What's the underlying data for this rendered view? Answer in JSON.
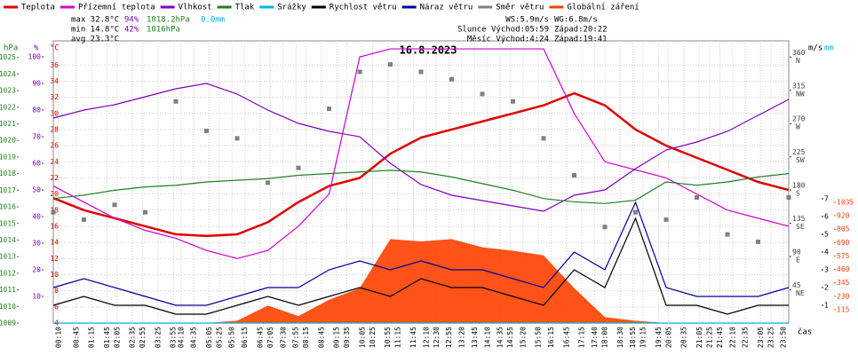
{
  "chart_data": {
    "type": "line",
    "title": "16.8.2023",
    "x_label": "čas",
    "stats": [
      "max 32.8°C",
      "94%",
      "1018.2hPa",
      "0.0mm",
      "min 14.8°C",
      "42%",
      "1016hPa",
      "avg 23.3°C"
    ],
    "wind_stats": [
      "WS:5.9m/s",
      "WG:6.8m/s"
    ],
    "sun": [
      "Slunce Východ:05:59",
      "Západ:20:22"
    ],
    "moon": [
      "Měsíc Východ:4:24",
      "Západ:19:41"
    ],
    "axis_units": {
      "hpa": "hPa",
      "pct": "%",
      "temp": "°C",
      "ms": "m/s",
      "mm": "mm"
    },
    "x": [
      0,
      1,
      2,
      3,
      4,
      5,
      6,
      7,
      8,
      9,
      10,
      11,
      12,
      13,
      14,
      15,
      16,
      17,
      18,
      19,
      20,
      21,
      22,
      23,
      24
    ],
    "xlim": [
      0,
      24
    ],
    "xticks": [
      {
        "value": 0.17,
        "label": "00:10"
      },
      {
        "value": 0.75,
        "label": "00:45"
      },
      {
        "value": 1.25,
        "label": "01:15"
      },
      {
        "value": 1.75,
        "label": "01:45"
      },
      {
        "value": 2.08,
        "label": "02:05"
      },
      {
        "value": 2.58,
        "label": "02:35"
      },
      {
        "value": 2.92,
        "label": "02:55"
      },
      {
        "value": 3.42,
        "label": "03:25"
      },
      {
        "value": 3.92,
        "label": "03:55"
      },
      {
        "value": 4.17,
        "label": "04:10"
      },
      {
        "value": 4.58,
        "label": "04:35"
      },
      {
        "value": 5.08,
        "label": "05:05"
      },
      {
        "value": 5.42,
        "label": "05:25"
      },
      {
        "value": 5.83,
        "label": "05:50"
      },
      {
        "value": 6.25,
        "label": "06:15"
      },
      {
        "value": 6.75,
        "label": "06:45"
      },
      {
        "value": 7.08,
        "label": "07:05"
      },
      {
        "value": 7.5,
        "label": "07:30"
      },
      {
        "value": 7.92,
        "label": "07:55"
      },
      {
        "value": 8.25,
        "label": "08:15"
      },
      {
        "value": 8.75,
        "label": "08:45"
      },
      {
        "value": 9.25,
        "label": "09:15"
      },
      {
        "value": 9.58,
        "label": "09:35"
      },
      {
        "value": 10.08,
        "label": "10:05"
      },
      {
        "value": 10.42,
        "label": "10:25"
      },
      {
        "value": 10.92,
        "label": "10:55"
      },
      {
        "value": 11.25,
        "label": "11:15"
      },
      {
        "value": 11.75,
        "label": "11:45"
      },
      {
        "value": 12.17,
        "label": "12:10"
      },
      {
        "value": 12.5,
        "label": "12:30"
      },
      {
        "value": 12.92,
        "label": "12:55"
      },
      {
        "value": 13.33,
        "label": "13:20"
      },
      {
        "value": 13.75,
        "label": "13:45"
      },
      {
        "value": 14.17,
        "label": "14:10"
      },
      {
        "value": 14.58,
        "label": "14:35"
      },
      {
        "value": 14.92,
        "label": "14:55"
      },
      {
        "value": 15.33,
        "label": "15:20"
      },
      {
        "value": 15.83,
        "label": "15:50"
      },
      {
        "value": 16.25,
        "label": "16:15"
      },
      {
        "value": 16.75,
        "label": "16:45"
      },
      {
        "value": 17.25,
        "label": "17:15"
      },
      {
        "value": 17.67,
        "label": "17:40"
      },
      {
        "value": 18,
        "label": "18:00"
      },
      {
        "value": 18.5,
        "label": "18:30"
      },
      {
        "value": 18.92,
        "label": "18:55"
      },
      {
        "value": 19.25,
        "label": "19:15"
      },
      {
        "value": 19.75,
        "label": "19:45"
      },
      {
        "value": 20.08,
        "label": "20:05"
      },
      {
        "value": 20.58,
        "label": "20:35"
      },
      {
        "value": 21.08,
        "label": "21:05"
      },
      {
        "value": 21.42,
        "label": "21:25"
      },
      {
        "value": 21.75,
        "label": "21:45"
      },
      {
        "value": 22.17,
        "label": "22:10"
      },
      {
        "value": 22.58,
        "label": "22:35"
      },
      {
        "value": 23.08,
        "label": "23:05"
      },
      {
        "value": 23.42,
        "label": "23:25"
      },
      {
        "value": 23.83,
        "label": "23:50"
      }
    ],
    "axes": {
      "temp": {
        "ylim": [
          4,
          39
        ],
        "yticks": [
          4,
          6,
          8,
          10,
          12,
          14,
          16,
          18,
          20,
          22,
          24,
          26,
          28,
          30,
          32,
          34,
          36
        ],
        "color": "#e00000"
      },
      "pct": {
        "ylim": [
          0,
          106
        ],
        "yticks": [
          10,
          20,
          30,
          40,
          50,
          60,
          70,
          80,
          90,
          100
        ],
        "color": "#8000c0"
      },
      "hpa": {
        "ylim": [
          1009,
          1026
        ],
        "yticks": [
          1009,
          1010,
          1011,
          1012,
          1013,
          1014,
          1015,
          1016,
          1017,
          1018,
          1019,
          1020,
          1021,
          1022,
          1023,
          1024,
          1025
        ],
        "color": "#208020"
      },
      "dir": {
        "ylim": [
          0,
          382
        ],
        "yticks": [
          45,
          90,
          135,
          180,
          225,
          270,
          315,
          360
        ],
        "dir_labels": [
          "NE",
          "E",
          "SE",
          "S",
          "SW",
          "W",
          "NW",
          "N"
        ],
        "color": "#404040"
      },
      "ms": {
        "ylim": [
          0,
          15.9
        ],
        "yticks": [
          1,
          2,
          3,
          4,
          5,
          6,
          7
        ],
        "color": "#000000"
      },
      "rad": {
        "ylim": [
          0,
          2420
        ],
        "yticks": [
          115,
          230,
          345,
          460,
          575,
          690,
          805,
          920,
          1035
        ],
        "color": "#ff4000"
      }
    },
    "series": [
      {
        "name": "Teplota",
        "color": "#e00000",
        "axis": "temp",
        "values": [
          19.5,
          18,
          17,
          16,
          15,
          14.8,
          15,
          16.5,
          19,
          21,
          22,
          25,
          27,
          28,
          29,
          30,
          31,
          32.5,
          31,
          28,
          26,
          24.5,
          23,
          21.5,
          20.5
        ]
      },
      {
        "name": "Přízemní teplota",
        "color": "#d000d0",
        "axis": "temp",
        "values": [
          21,
          19,
          17,
          15.5,
          14.5,
          13,
          12,
          13,
          16,
          20,
          37,
          38,
          38,
          38,
          38,
          38,
          38,
          30,
          24,
          23,
          22,
          20,
          18,
          17,
          16
        ]
      },
      {
        "name": "Vlhkost",
        "color": "#8000c0",
        "axis": "pct",
        "values": [
          77,
          80,
          82,
          85,
          88,
          90,
          86,
          80,
          75,
          72,
          70,
          60,
          52,
          48,
          46,
          44,
          42,
          48,
          50,
          58,
          65,
          68,
          72,
          78,
          84
        ]
      },
      {
        "name": "Tlak",
        "color": "#208020",
        "axis": "hpa",
        "values": [
          1016.5,
          1016.7,
          1017,
          1017.2,
          1017.3,
          1017.5,
          1017.6,
          1017.7,
          1017.9,
          1018,
          1018.1,
          1018.2,
          1018.1,
          1017.8,
          1017.4,
          1017,
          1016.5,
          1016.3,
          1016.2,
          1016.4,
          1017.5,
          1017.3,
          1017.5,
          1017.8,
          1018
        ]
      },
      {
        "name": "Srážky",
        "color": "#00b0e0",
        "axis": "ms",
        "values": [
          0,
          0,
          0,
          0,
          0,
          0,
          0,
          0,
          0,
          0,
          0,
          0,
          0,
          0,
          0,
          0,
          0,
          0,
          0,
          0,
          0,
          0,
          0,
          0,
          0
        ]
      },
      {
        "name": "Rychlost větru",
        "color": "#000000",
        "axis": "ms",
        "values": [
          1,
          1.5,
          1,
          1,
          0.5,
          0.5,
          1,
          1.5,
          1,
          1.5,
          2,
          1.5,
          2.5,
          2,
          2,
          1.5,
          1,
          3,
          2,
          5.9,
          1,
          1,
          0.5,
          1,
          1
        ]
      },
      {
        "name": "Náraz větru",
        "color": "#0000a0",
        "axis": "ms",
        "values": [
          2,
          2.5,
          2,
          1.5,
          1,
          1,
          1.5,
          2,
          2,
          3,
          3.5,
          3,
          3.5,
          3,
          3,
          2.5,
          2,
          4,
          3,
          6.8,
          2,
          1.5,
          1.5,
          1.5,
          2
        ]
      },
      {
        "name": "Směr větru",
        "color": "#808080",
        "axis": "dir",
        "kind": "scatter",
        "values": [
          150,
          140,
          160,
          150,
          300,
          260,
          250,
          190,
          210,
          290,
          340,
          350,
          340,
          330,
          310,
          300,
          250,
          200,
          130,
          150,
          140,
          170,
          120,
          110,
          170
        ]
      },
      {
        "name": "Globální záření",
        "color": "#ff4000",
        "axis": "rad",
        "kind": "area",
        "values": [
          0,
          0,
          0,
          0,
          0,
          0,
          20,
          150,
          60,
          200,
          300,
          720,
          700,
          720,
          650,
          620,
          580,
          300,
          50,
          20,
          0,
          0,
          0,
          0,
          0
        ]
      }
    ]
  }
}
